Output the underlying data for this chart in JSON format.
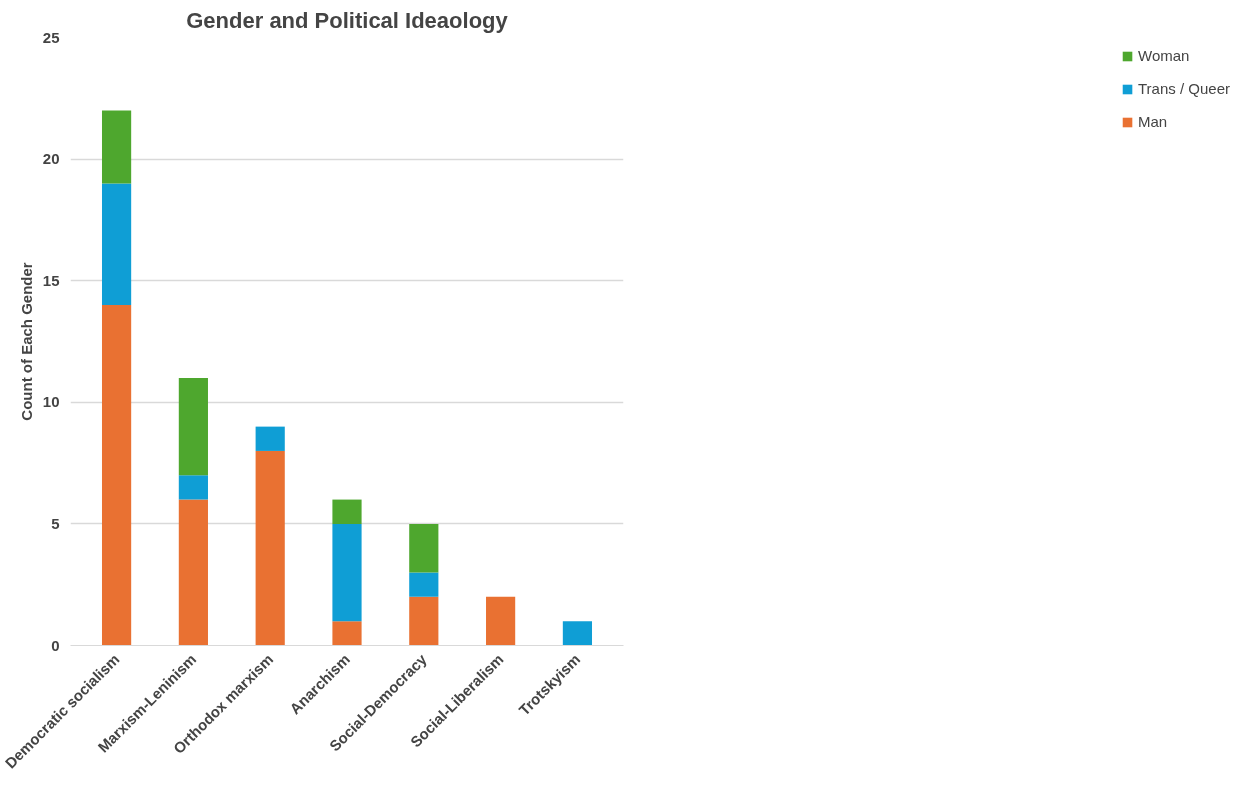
{
  "chart_data": {
    "type": "bar",
    "title": "Gender and Political Ideaology",
    "ylabel": "Count of Each Gender",
    "categories": [
      "Democratic socialism",
      "Marxism-Leninism",
      "Orthodox marxism",
      "Anarchism",
      "Social-Democracy",
      "Social-Liberalism",
      "Trotskyism"
    ],
    "stacked": true,
    "series": [
      {
        "name": "Man",
        "color": "#e97132",
        "values": [
          14,
          6,
          8,
          1,
          2,
          2,
          null
        ]
      },
      {
        "name": "Trans / Queer",
        "color": "#0f9ed5",
        "values": [
          5,
          1,
          1,
          4,
          1,
          null,
          1
        ]
      },
      {
        "name": "Woman",
        "color": "#4ea72e",
        "values": [
          3,
          4,
          null,
          1,
          2,
          null,
          null
        ]
      }
    ],
    "ylim": [
      0,
      25
    ],
    "yticks": [
      0,
      5,
      10,
      15,
      20,
      25
    ],
    "grid": "y",
    "legend": "right"
  }
}
